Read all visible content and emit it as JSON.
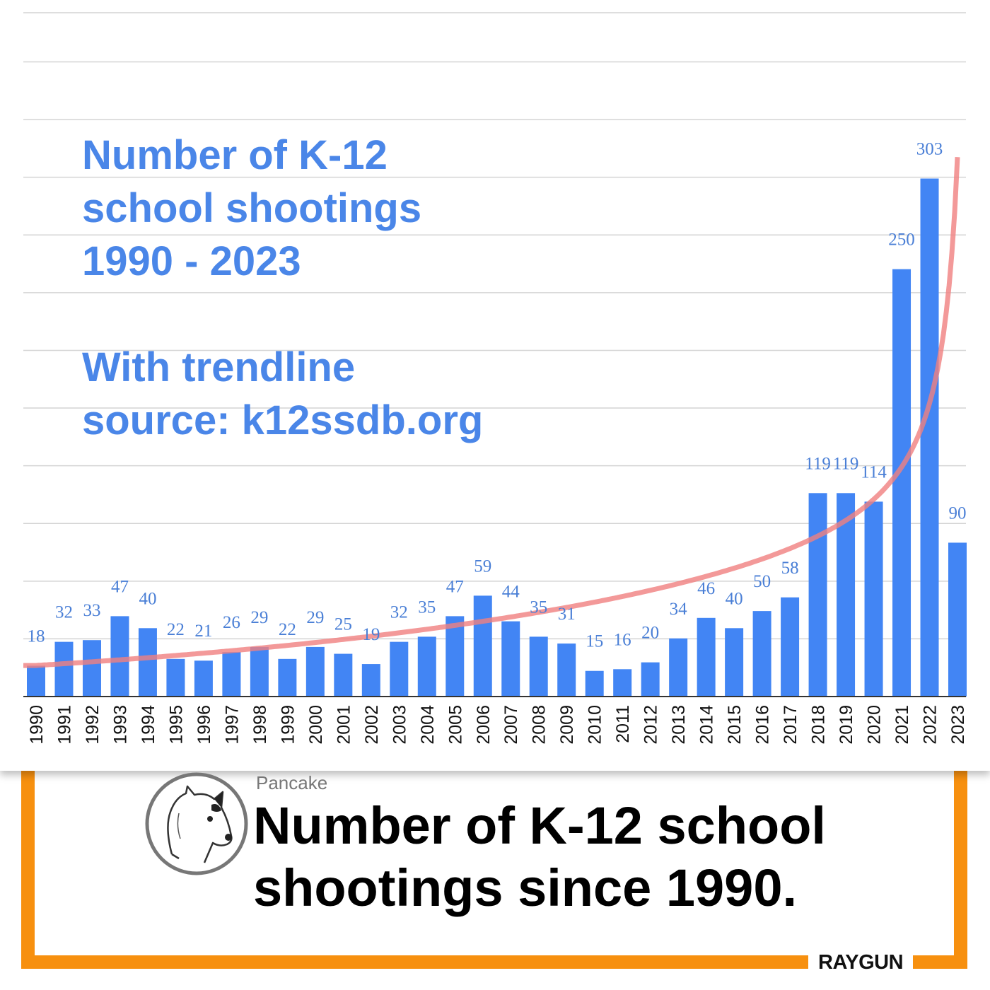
{
  "chart_data": {
    "type": "bar",
    "title": "Number of K-12\nschool shootings\n1990 - 2023",
    "subtitle": "With trendline\nsource: k12ssdb.org",
    "categories": [
      "1990",
      "1991",
      "1992",
      "1993",
      "1994",
      "1995",
      "1996",
      "1997",
      "1998",
      "1999",
      "2000",
      "2001",
      "2002",
      "2003",
      "2004",
      "2005",
      "2006",
      "2007",
      "2008",
      "2009",
      "2010",
      "2011",
      "2012",
      "2013",
      "2014",
      "2015",
      "2016",
      "2017",
      "2018",
      "2019",
      "2020",
      "2021",
      "2022",
      "2023"
    ],
    "values": [
      18,
      32,
      33,
      47,
      40,
      22,
      21,
      26,
      29,
      22,
      29,
      25,
      19,
      32,
      35,
      47,
      59,
      44,
      35,
      31,
      15,
      16,
      20,
      34,
      46,
      40,
      50,
      58,
      119,
      119,
      114,
      250,
      303,
      90
    ],
    "ylim": [
      0,
      400
    ],
    "grid": true,
    "trendline": true,
    "colors": {
      "bar": "#4285f4",
      "label": "#4a7fd6",
      "trend": "#f08080",
      "grid": "#d4d4d4"
    }
  },
  "card": {
    "author": "Pancake",
    "headline": "Number of K-12 school shootings since 1990.",
    "brand": "RAYGUN",
    "accent": "#f7900f",
    "avatar_icon": "dog-avatar-icon"
  }
}
